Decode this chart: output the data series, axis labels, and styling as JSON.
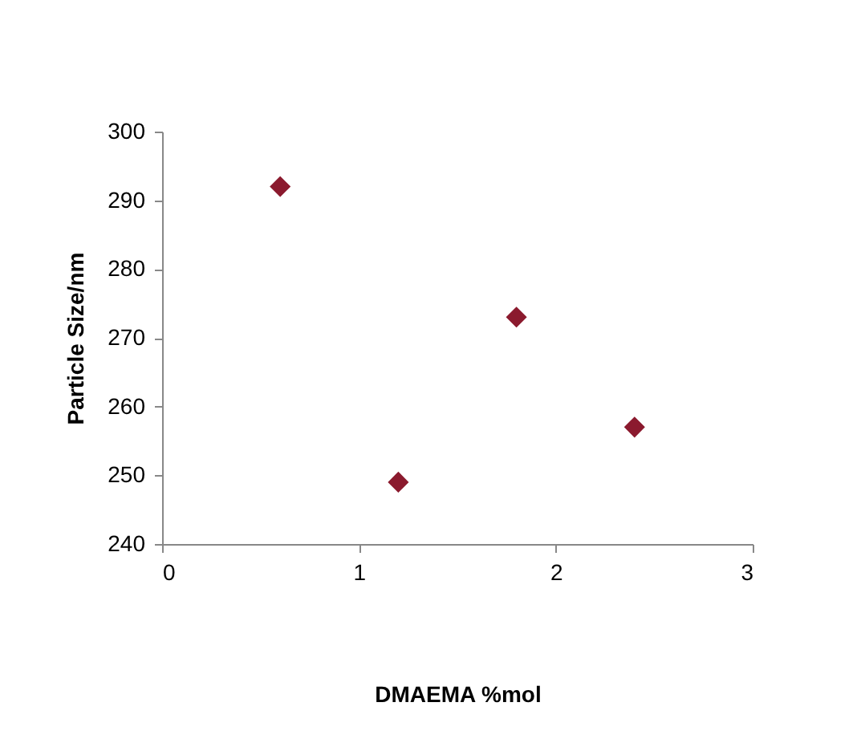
{
  "chart_data": {
    "type": "scatter",
    "xlabel": "DMAEMA %mol",
    "ylabel": "Particle Size/nm",
    "x": [
      0.6,
      1.2,
      1.8,
      2.4
    ],
    "series": [
      {
        "color": "#8b1a2e",
        "values": [
          292,
          249,
          273,
          257
        ]
      }
    ],
    "xlim": [
      0,
      3
    ],
    "xticks": [
      0,
      1,
      2,
      3
    ],
    "ylim": [
      240,
      300
    ],
    "yticks": [
      240,
      250,
      260,
      270,
      280,
      290,
      300
    ],
    "grid": false,
    "legend": false,
    "marker": "diamond"
  }
}
